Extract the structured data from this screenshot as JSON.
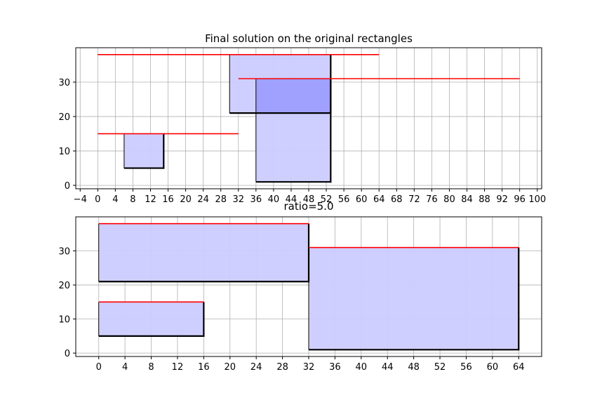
{
  "chart_data": [
    {
      "type": "rectangles",
      "title": "Final solution on the original rectangles",
      "xlim": [
        -5,
        101
      ],
      "ylim": [
        -1,
        40
      ],
      "xticks": [
        -4,
        0,
        4,
        8,
        12,
        16,
        20,
        24,
        28,
        32,
        36,
        40,
        44,
        48,
        52,
        56,
        60,
        64,
        68,
        72,
        76,
        80,
        84,
        88,
        92,
        96,
        100
      ],
      "yticks": [
        0,
        10,
        20,
        30
      ],
      "grid": true,
      "rectangles": [
        {
          "x0": 6,
          "x1": 15,
          "y0": 5,
          "y1": 15
        },
        {
          "x0": 30,
          "x1": 53,
          "y0": 21,
          "y1": 38
        },
        {
          "x0": 36,
          "x1": 53,
          "y0": 1,
          "y1": 31
        }
      ],
      "lines": [
        {
          "x0": 0,
          "x1": 64,
          "y": 38
        },
        {
          "x0": 32,
          "x1": 96,
          "y": 31
        },
        {
          "x0": 0,
          "x1": 32,
          "y": 15
        }
      ],
      "fill_color": "#ccccff",
      "overlap_color": "#a0a0ff",
      "line_color": "#ff0000"
    },
    {
      "type": "rectangles",
      "title": "ratio=5.0",
      "xlim": [
        -3.5,
        67.5
      ],
      "ylim": [
        -1,
        40
      ],
      "xticks": [
        0,
        4,
        8,
        12,
        16,
        20,
        24,
        28,
        32,
        36,
        40,
        44,
        48,
        52,
        56,
        60,
        64
      ],
      "yticks": [
        0,
        10,
        20,
        30
      ],
      "grid": true,
      "rectangles": [
        {
          "x0": 0,
          "x1": 32,
          "y0": 21,
          "y1": 38
        },
        {
          "x0": 0,
          "x1": 16,
          "y0": 5,
          "y1": 15
        },
        {
          "x0": 32,
          "x1": 64,
          "y0": 1,
          "y1": 31
        }
      ],
      "lines": [
        {
          "x0": 0,
          "x1": 32,
          "y": 38
        },
        {
          "x0": 0,
          "x1": 16,
          "y": 15
        },
        {
          "x0": 32,
          "x1": 64,
          "y": 31
        }
      ],
      "fill_color": "#ccccff",
      "overlap_color": "#a0a0ff",
      "line_color": "#ff0000"
    }
  ]
}
